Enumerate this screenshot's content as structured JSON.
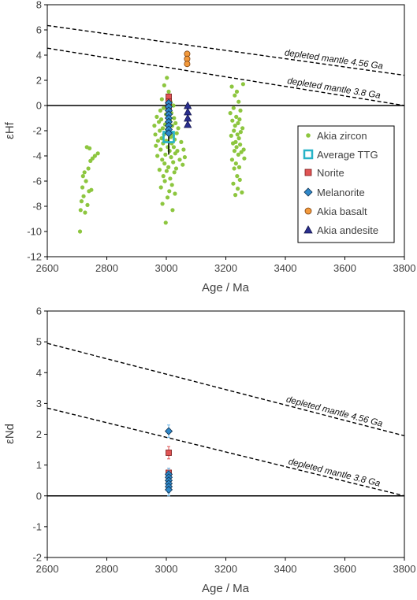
{
  "chart_data": [
    {
      "type": "scatter",
      "xlabel": "Age / Ma",
      "ylabel": "εHf",
      "xlim": [
        2600,
        3800
      ],
      "ylim": [
        -12,
        8
      ],
      "xticks": [
        2600,
        2800,
        3000,
        3200,
        3400,
        3600,
        3800
      ],
      "yticks": [
        -12,
        -10,
        -8,
        -6,
        -4,
        -2,
        0,
        2,
        4,
        6,
        8
      ],
      "grid": false,
      "legend": "right",
      "zero_line": true,
      "lines": [
        {
          "label": "depleted mantle 4.56 Ga",
          "x": [
            2600,
            3800
          ],
          "y": [
            6.35,
            2.4
          ],
          "style": "dashed"
        },
        {
          "label": "depleted mantle 3.8 Ga",
          "x": [
            2600,
            3800
          ],
          "y": [
            4.55,
            0.0
          ],
          "style": "dashed"
        }
      ],
      "series": [
        {
          "name": "Akia zircon",
          "marker": "circle",
          "color": "#8dc63f",
          "points": [
            [
              2710,
              -10.0
            ],
            [
              2712,
              -8.3
            ],
            [
              2715,
              -7.6
            ],
            [
              2718,
              -6.5
            ],
            [
              2720,
              -5.6
            ],
            [
              2722,
              -7.2
            ],
            [
              2725,
              -5.3
            ],
            [
              2727,
              -8.5
            ],
            [
              2730,
              -6.0
            ],
            [
              2733,
              -3.3
            ],
            [
              2735,
              -7.9
            ],
            [
              2738,
              -5.0
            ],
            [
              2740,
              -6.8
            ],
            [
              2742,
              -3.4
            ],
            [
              2745,
              -4.4
            ],
            [
              2748,
              -6.7
            ],
            [
              2752,
              -4.2
            ],
            [
              2760,
              -4.0
            ],
            [
              2770,
              -3.8
            ],
            [
              2960,
              -1.6
            ],
            [
              2963,
              -2.3
            ],
            [
              2965,
              -3.2
            ],
            [
              2968,
              -0.9
            ],
            [
              2970,
              -4.0
            ],
            [
              2972,
              -2.8
            ],
            [
              2975,
              -1.3
            ],
            [
              2977,
              -5.1
            ],
            [
              2978,
              -2.0
            ],
            [
              2980,
              -0.4
            ],
            [
              2981,
              -3.5
            ],
            [
              2982,
              -6.5
            ],
            [
              2983,
              -1.1
            ],
            [
              2984,
              -2.6
            ],
            [
              2985,
              0.5
            ],
            [
              2986,
              -4.3
            ],
            [
              2987,
              -7.8
            ],
            [
              2988,
              -1.8
            ],
            [
              2989,
              -3.0
            ],
            [
              2990,
              -5.6
            ],
            [
              2991,
              -0.2
            ],
            [
              2992,
              -2.3
            ],
            [
              2993,
              1.6
            ],
            [
              2994,
              -4.6
            ],
            [
              2995,
              -6.0
            ],
            [
              2996,
              -1.5
            ],
            [
              2997,
              -3.9
            ],
            [
              2998,
              -9.3
            ],
            [
              2999,
              -0.7
            ],
            [
              3000,
              -2.8
            ],
            [
              3001,
              -5.2
            ],
            [
              3002,
              2.2
            ],
            [
              3003,
              -1.9
            ],
            [
              3004,
              -7.3
            ],
            [
              3005,
              -3.3
            ],
            [
              3006,
              -0.3
            ],
            [
              3007,
              -4.9
            ],
            [
              3008,
              1.1
            ],
            [
              3009,
              -2.1
            ],
            [
              3010,
              -6.8
            ],
            [
              3011,
              -3.6
            ],
            [
              3012,
              -1.2
            ],
            [
              3013,
              -5.8
            ],
            [
              3014,
              0.3
            ],
            [
              3015,
              -2.5
            ],
            [
              3016,
              -4.1
            ],
            [
              3017,
              -0.6
            ],
            [
              3018,
              -3.0
            ],
            [
              3019,
              -6.3
            ],
            [
              3020,
              -1.6
            ],
            [
              3021,
              -8.3
            ],
            [
              3022,
              -2.4
            ],
            [
              3023,
              -4.5
            ],
            [
              3024,
              0.0
            ],
            [
              3025,
              -3.3
            ],
            [
              3026,
              -1.0
            ],
            [
              3027,
              -5.3
            ],
            [
              3028,
              -2.7
            ],
            [
              3029,
              -7.0
            ],
            [
              3030,
              -3.8
            ],
            [
              3031,
              -1.4
            ],
            [
              3033,
              -5.0
            ],
            [
              3035,
              -2.2
            ],
            [
              3037,
              -3.6
            ],
            [
              3040,
              -1.8
            ],
            [
              3045,
              -4.3
            ],
            [
              3050,
              -2.9
            ],
            [
              3055,
              -4.7
            ],
            [
              3058,
              -3.5
            ],
            [
              3062,
              -4.1
            ],
            [
              3215,
              -0.6
            ],
            [
              3218,
              -2.4
            ],
            [
              3220,
              1.5
            ],
            [
              3221,
              -4.3
            ],
            [
              3222,
              -1.2
            ],
            [
              3224,
              -3.0
            ],
            [
              3225,
              -6.2
            ],
            [
              3226,
              -0.2
            ],
            [
              3227,
              -2.0
            ],
            [
              3228,
              -5.0
            ],
            [
              3229,
              -3.6
            ],
            [
              3230,
              0.8
            ],
            [
              3231,
              -1.6
            ],
            [
              3232,
              -7.1
            ],
            [
              3233,
              -2.9
            ],
            [
              3234,
              -4.6
            ],
            [
              3235,
              -0.9
            ],
            [
              3236,
              -3.3
            ],
            [
              3237,
              1.1
            ],
            [
              3238,
              -5.6
            ],
            [
              3239,
              -2.3
            ],
            [
              3240,
              -6.6
            ],
            [
              3241,
              -1.4
            ],
            [
              3242,
              -3.9
            ],
            [
              3243,
              0.3
            ],
            [
              3244,
              -2.6
            ],
            [
              3245,
              -4.9
            ],
            [
              3246,
              -1.1
            ],
            [
              3247,
              -5.9
            ],
            [
              3248,
              -3.1
            ],
            [
              3249,
              -0.4
            ],
            [
              3250,
              -2.1
            ],
            [
              3252,
              -3.7
            ],
            [
              3254,
              -6.9
            ],
            [
              3256,
              -1.8
            ],
            [
              3258,
              1.7
            ],
            [
              3260,
              -3.5
            ],
            [
              3262,
              -4.2
            ]
          ]
        },
        {
          "name": "Average TTG",
          "marker": "square-open",
          "color": "#27b3c7",
          "points": [
            [
              3008,
              -2.5
            ]
          ],
          "error_y": [
            [
              -3.9,
              -1.3
            ]
          ]
        },
        {
          "name": "Norite",
          "marker": "square",
          "color": "#e05454",
          "points": [
            [
              3008,
              0.7
            ],
            [
              3008,
              0.3
            ],
            [
              3008,
              -0.1
            ]
          ]
        },
        {
          "name": "Melanorite",
          "marker": "diamond",
          "color": "#2f88c9",
          "points": [
            [
              3008,
              0.2
            ],
            [
              3008,
              -0.1
            ],
            [
              3008,
              -0.4
            ],
            [
              3008,
              -0.7
            ],
            [
              3008,
              -1.0
            ],
            [
              3008,
              -1.3
            ],
            [
              3008,
              -1.6
            ],
            [
              3008,
              -1.9
            ],
            [
              3008,
              -2.2
            ]
          ]
        },
        {
          "name": "Akia basalt",
          "marker": "circle",
          "color": "#f39a3c",
          "points": [
            [
              3070,
              4.1
            ],
            [
              3070,
              3.7
            ],
            [
              3070,
              3.3
            ]
          ]
        },
        {
          "name": "Akia andesite",
          "marker": "triangle",
          "color": "#2a2f8f",
          "points": [
            [
              3072,
              0.0
            ],
            [
              3072,
              -0.5
            ],
            [
              3072,
              -1.0
            ],
            [
              3072,
              -1.5
            ]
          ]
        }
      ]
    },
    {
      "type": "scatter",
      "xlabel": "Age / Ma",
      "ylabel": "εNd",
      "xlim": [
        2600,
        3800
      ],
      "ylim": [
        -2,
        6
      ],
      "xticks": [
        2600,
        2800,
        3000,
        3200,
        3400,
        3600,
        3800
      ],
      "yticks": [
        -2,
        -1,
        0,
        1,
        2,
        3,
        4,
        5,
        6
      ],
      "grid": false,
      "zero_line": true,
      "lines": [
        {
          "label": "depleted mantle 4.56 Ga",
          "x": [
            2600,
            3800
          ],
          "y": [
            4.95,
            1.95
          ],
          "style": "dashed"
        },
        {
          "label": "depleted mantle 3.8 Ga",
          "x": [
            2600,
            3800
          ],
          "y": [
            2.85,
            0.0
          ],
          "style": "dashed"
        }
      ],
      "series": [
        {
          "name": "Norite",
          "marker": "square",
          "color": "#e05454",
          "points": [
            [
              3008,
              1.4
            ],
            [
              3008,
              0.75
            ]
          ],
          "error_y": [
            [
              1.2,
              1.6
            ],
            [
              0.6,
              0.9
            ]
          ]
        },
        {
          "name": "Melanorite",
          "marker": "diamond",
          "color": "#2f88c9",
          "points": [
            [
              3008,
              2.1
            ],
            [
              3008,
              0.7
            ],
            [
              3008,
              0.6
            ],
            [
              3008,
              0.5
            ],
            [
              3008,
              0.4
            ],
            [
              3008,
              0.3
            ],
            [
              3008,
              0.2
            ]
          ],
          "error_y": [
            [
              1.9,
              2.3
            ],
            [
              0.5,
              0.9
            ],
            [
              0.4,
              0.8
            ],
            [
              0.3,
              0.7
            ],
            [
              0.2,
              0.6
            ],
            [
              0.1,
              0.5
            ],
            [
              0.0,
              0.4
            ]
          ]
        }
      ]
    }
  ]
}
